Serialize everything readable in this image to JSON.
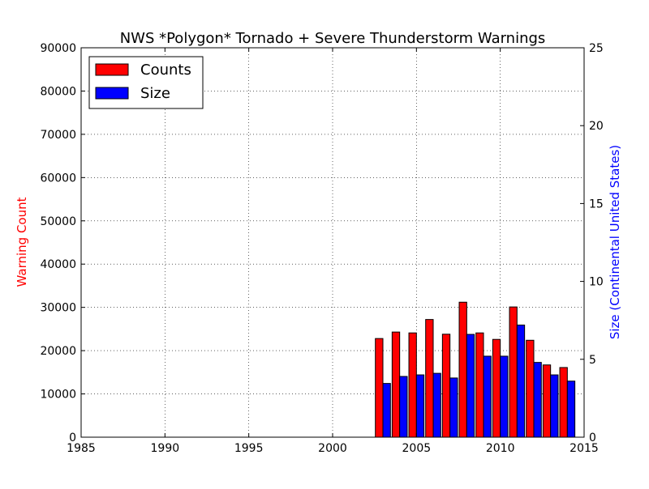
{
  "chart_data": {
    "type": "bar",
    "title": "NWS *Polygon* Tornado + Severe Thunderstorm Warnings",
    "xlabel": "",
    "ylabel_left": "Warning Count",
    "ylabel_right": "Size (Continental United States)",
    "xlim": [
      1985,
      2015
    ],
    "ylim_left": [
      0,
      90000
    ],
    "ylim_right": [
      0,
      25
    ],
    "x_ticks": [
      "1985",
      "1990",
      "1995",
      "2000",
      "2005",
      "2010",
      "2015"
    ],
    "y_ticks_left": [
      "0",
      "10000",
      "20000",
      "30000",
      "40000",
      "50000",
      "60000",
      "70000",
      "80000",
      "90000"
    ],
    "y_ticks_right": [
      "0",
      "5",
      "10",
      "15",
      "20",
      "25"
    ],
    "grid": true,
    "legend_position": "top-left",
    "colors": {
      "counts": "#ff0000",
      "size": "#0000ff",
      "left_axis_label": "#ff0000",
      "right_axis_label": "#0000ff"
    },
    "x": [
      1986,
      1987,
      1988,
      1989,
      1990,
      1991,
      1992,
      1993,
      1994,
      1995,
      1996,
      1997,
      1998,
      1999,
      2000,
      2001,
      2002,
      2003,
      2004,
      2005,
      2006,
      2007,
      2008,
      2009,
      2010,
      2011,
      2012,
      2013,
      2014
    ],
    "series": [
      {
        "name": "Counts",
        "axis": "left",
        "values": [
          0,
          0,
          0,
          0,
          0,
          0,
          0,
          0,
          0,
          0,
          0,
          0,
          0,
          0,
          0,
          0,
          0,
          22800,
          24300,
          24100,
          27200,
          23800,
          31200,
          24100,
          22600,
          30100,
          22400,
          16700,
          16100
        ]
      },
      {
        "name": "Size",
        "axis": "right",
        "values": [
          0,
          0,
          0,
          0,
          0,
          0,
          0,
          0,
          0,
          0,
          0,
          0,
          0,
          0,
          0,
          0,
          0,
          3.45,
          3.9,
          4.0,
          4.1,
          3.8,
          6.6,
          5.2,
          5.2,
          7.2,
          4.8,
          4.0,
          3.6
        ]
      }
    ]
  }
}
